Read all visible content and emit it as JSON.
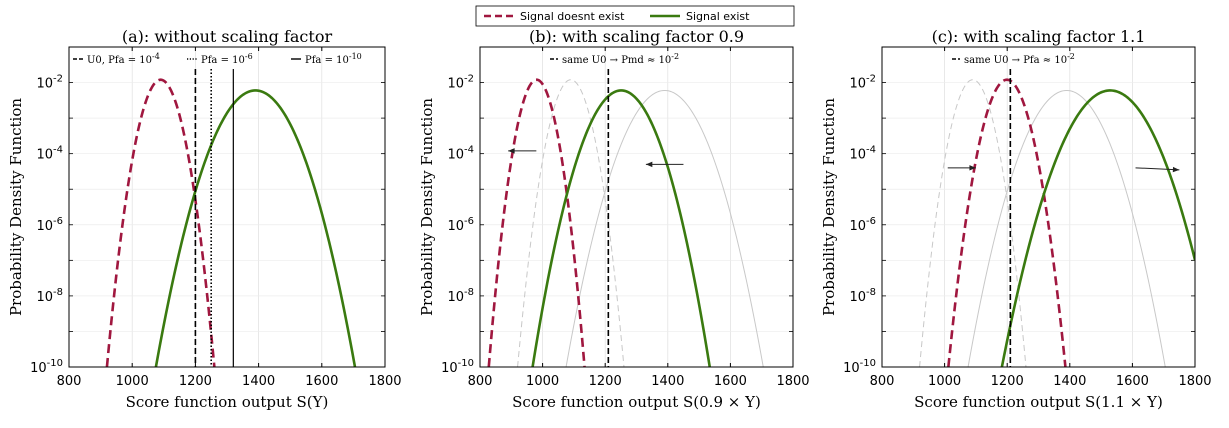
{
  "chart_data": [
    {
      "type": "line",
      "title": "(a): without scaling factor",
      "xlabel": "Score function output S(Y)",
      "ylabel": "Probability Density Function",
      "xlim": [
        800,
        1800
      ],
      "ylim": [
        1e-10,
        0.1
      ],
      "yscale": "log",
      "xticks": [
        "800",
        "1000",
        "1200",
        "1400",
        "1600",
        "1800"
      ],
      "yticks": [
        "10-10",
        "10-8",
        "10-6",
        "10-4",
        "10-2"
      ],
      "grid": true,
      "series": [
        {
          "name": "Signal doesnt exist",
          "style": "dashed",
          "color": "#a0173f",
          "peak_x": 1090,
          "peak_y": 0.012,
          "x_range": [
            920,
            1320
          ]
        },
        {
          "name": "Signal exist",
          "style": "solid",
          "color": "#3a7a10",
          "peak_x": 1390,
          "peak_y": 0.006,
          "x_range": [
            1075,
            1800
          ]
        }
      ],
      "thresholds": [
        {
          "label": "U0, Pfa = 10-4",
          "style": "dashed",
          "x": 1200
        },
        {
          "label": "Pfa = 10-6",
          "style": "dotted",
          "x": 1250
        },
        {
          "label": "Pfa = 10-10",
          "style": "solid",
          "x": 1320
        }
      ]
    },
    {
      "type": "line",
      "title": "(b): with scaling factor 0.9",
      "xlabel": "Score function output S(0.9 × Y)",
      "ylabel": "Probability Density Function",
      "xlim": [
        800,
        1800
      ],
      "ylim": [
        1e-10,
        0.1
      ],
      "yscale": "log",
      "xticks": [
        "800",
        "1000",
        "1200",
        "1400",
        "1600",
        "1800"
      ],
      "yticks": [
        "10-10",
        "10-8",
        "10-6",
        "10-4",
        "10-2"
      ],
      "grid": true,
      "series": [
        {
          "name": "Signal doesnt exist",
          "style": "dashed",
          "color": "#a0173f",
          "peak_x": 981,
          "peak_y": 0.012,
          "x_range": [
            828,
            1188
          ]
        },
        {
          "name": "Signal exist",
          "style": "solid",
          "color": "#3a7a10",
          "peak_x": 1251,
          "peak_y": 0.006,
          "x_range": [
            968,
            1620
          ]
        },
        {
          "name": "",
          "style": "dashed",
          "color": "#c8c8c8",
          "peak_x": 1090,
          "peak_y": 0.012,
          "x_range": [
            920,
            1320
          ]
        },
        {
          "name": "",
          "style": "solid",
          "color": "#c8c8c8",
          "peak_x": 1390,
          "peak_y": 0.006,
          "x_range": [
            1075,
            1800
          ]
        }
      ],
      "thresholds": [
        {
          "label": "same U0 → Pmd ≈ 10-2",
          "style": "dashed",
          "x": 1210
        }
      ]
    },
    {
      "type": "line",
      "title": "(c): with scaling factor 1.1",
      "xlabel": "Score function output S(1.1 × Y)",
      "ylabel": "Probability Density Function",
      "xlim": [
        800,
        1800
      ],
      "ylim": [
        1e-10,
        0.1
      ],
      "yscale": "log",
      "xticks": [
        "800",
        "1000",
        "1200",
        "1400",
        "1600",
        "1800"
      ],
      "yticks": [
        "10-10",
        "10-8",
        "10-6",
        "10-4",
        "10-2"
      ],
      "grid": true,
      "series": [
        {
          "name": "Signal doesnt exist",
          "style": "dashed",
          "color": "#a0173f",
          "peak_x": 1199,
          "peak_y": 0.012,
          "x_range": [
            1012,
            1452
          ]
        },
        {
          "name": "Signal exist",
          "style": "solid",
          "color": "#3a7a10",
          "peak_x": 1529,
          "peak_y": 0.006,
          "x_range": [
            1183,
            1800
          ]
        },
        {
          "name": "",
          "style": "dashed",
          "color": "#c8c8c8",
          "peak_x": 1090,
          "peak_y": 0.012,
          "x_range": [
            920,
            1320
          ]
        },
        {
          "name": "",
          "style": "solid",
          "color": "#c8c8c8",
          "peak_x": 1390,
          "peak_y": 0.006,
          "x_range": [
            1075,
            1800
          ]
        }
      ],
      "thresholds": [
        {
          "label": "same U0 → Pfa ≈ 10-2",
          "style": "dashed",
          "x": 1210
        }
      ]
    }
  ],
  "legend": {
    "items": [
      {
        "label": "Signal doesnt exist",
        "color": "#a0173f",
        "style": "dashed"
      },
      {
        "label": "Signal exist",
        "color": "#3a7a10",
        "style": "solid"
      }
    ]
  }
}
